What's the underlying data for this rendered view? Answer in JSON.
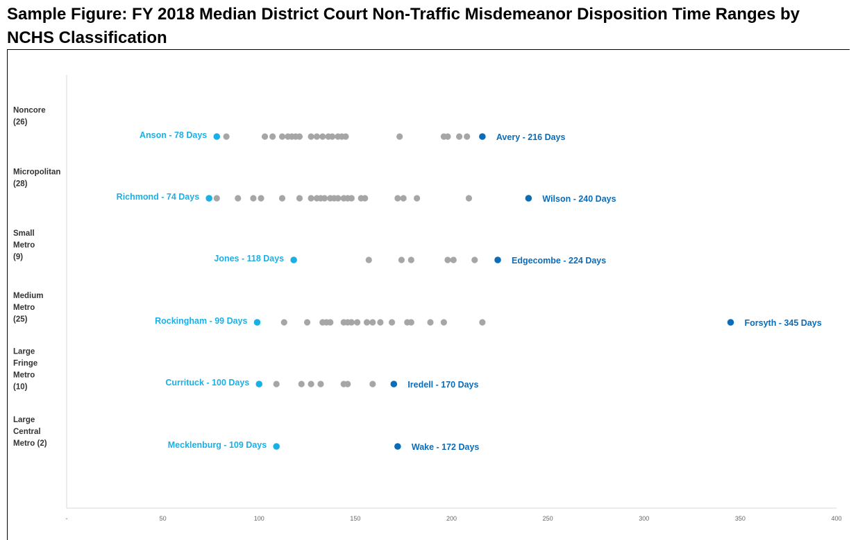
{
  "chart_data": {
    "type": "scatter",
    "title": "Sample Figure: FY 2018 Median District Court Non-Traffic Misdemeanor Disposition Time Ranges by NCHS Classification",
    "xlabel": "",
    "ylabel": "",
    "xlim": [
      0,
      400
    ],
    "xticks": [
      {
        "value": 0,
        "label": "-"
      },
      {
        "value": 50,
        "label": "50"
      },
      {
        "value": 100,
        "label": "100"
      },
      {
        "value": 150,
        "label": "150"
      },
      {
        "value": 200,
        "label": "200"
      },
      {
        "value": 250,
        "label": "250"
      },
      {
        "value": 300,
        "label": "300"
      },
      {
        "value": 350,
        "label": "350"
      },
      {
        "value": 400,
        "label": "400"
      }
    ],
    "grid": false,
    "colors": {
      "min": "#1ab0e6",
      "max": "#0b6cb8",
      "other": "#a6a6a6"
    },
    "categories": [
      {
        "lines": [
          "Noncore",
          "(26)"
        ],
        "min": {
          "label": "Anson - 78 Days",
          "value": 78
        },
        "max": {
          "label": "Avery - 216 Days",
          "value": 216
        },
        "others": [
          83,
          103,
          107,
          112,
          115,
          117,
          119,
          121,
          127,
          130,
          133,
          136,
          138,
          141,
          143,
          145,
          173,
          196,
          198,
          204,
          208
        ]
      },
      {
        "lines": [
          "Micropolitan",
          "(28)"
        ],
        "min": {
          "label": "Richmond - 74 Days",
          "value": 74
        },
        "max": {
          "label": "Wilson - 240 Days",
          "value": 240
        },
        "others": [
          78,
          89,
          97,
          101,
          112,
          121,
          127,
          130,
          132,
          134,
          137,
          139,
          141,
          144,
          146,
          148,
          153,
          155,
          172,
          175,
          182,
          209
        ]
      },
      {
        "lines": [
          "Small",
          "Metro",
          "(9)"
        ],
        "min": {
          "label": "Jones - 118 Days",
          "value": 118
        },
        "max": {
          "label": "Edgecombe - 224 Days",
          "value": 224
        },
        "others": [
          157,
          174,
          179,
          198,
          201,
          212
        ]
      },
      {
        "lines": [
          "Medium",
          "Metro",
          "(25)"
        ],
        "min": {
          "label": "Rockingham - 99 Days",
          "value": 99
        },
        "max": {
          "label": "Forsyth - 345 Days",
          "value": 345
        },
        "others": [
          113,
          125,
          133,
          135,
          137,
          144,
          146,
          148,
          151,
          156,
          159,
          163,
          169,
          177,
          179,
          189,
          196,
          216
        ]
      },
      {
        "lines": [
          "Large",
          "Fringe",
          "Metro",
          "(10)"
        ],
        "min": {
          "label": "Currituck - 100 Days",
          "value": 100
        },
        "max": {
          "label": "Iredell - 170 Days",
          "value": 170
        },
        "others": [
          109,
          122,
          127,
          132,
          144,
          146,
          159
        ]
      },
      {
        "lines": [
          "Large",
          "Central",
          "Metro (2)"
        ],
        "min": {
          "label": "Mecklenburg - 109 Days",
          "value": 109
        },
        "max": {
          "label": "Wake - 172 Days",
          "value": 172
        },
        "others": []
      }
    ]
  }
}
